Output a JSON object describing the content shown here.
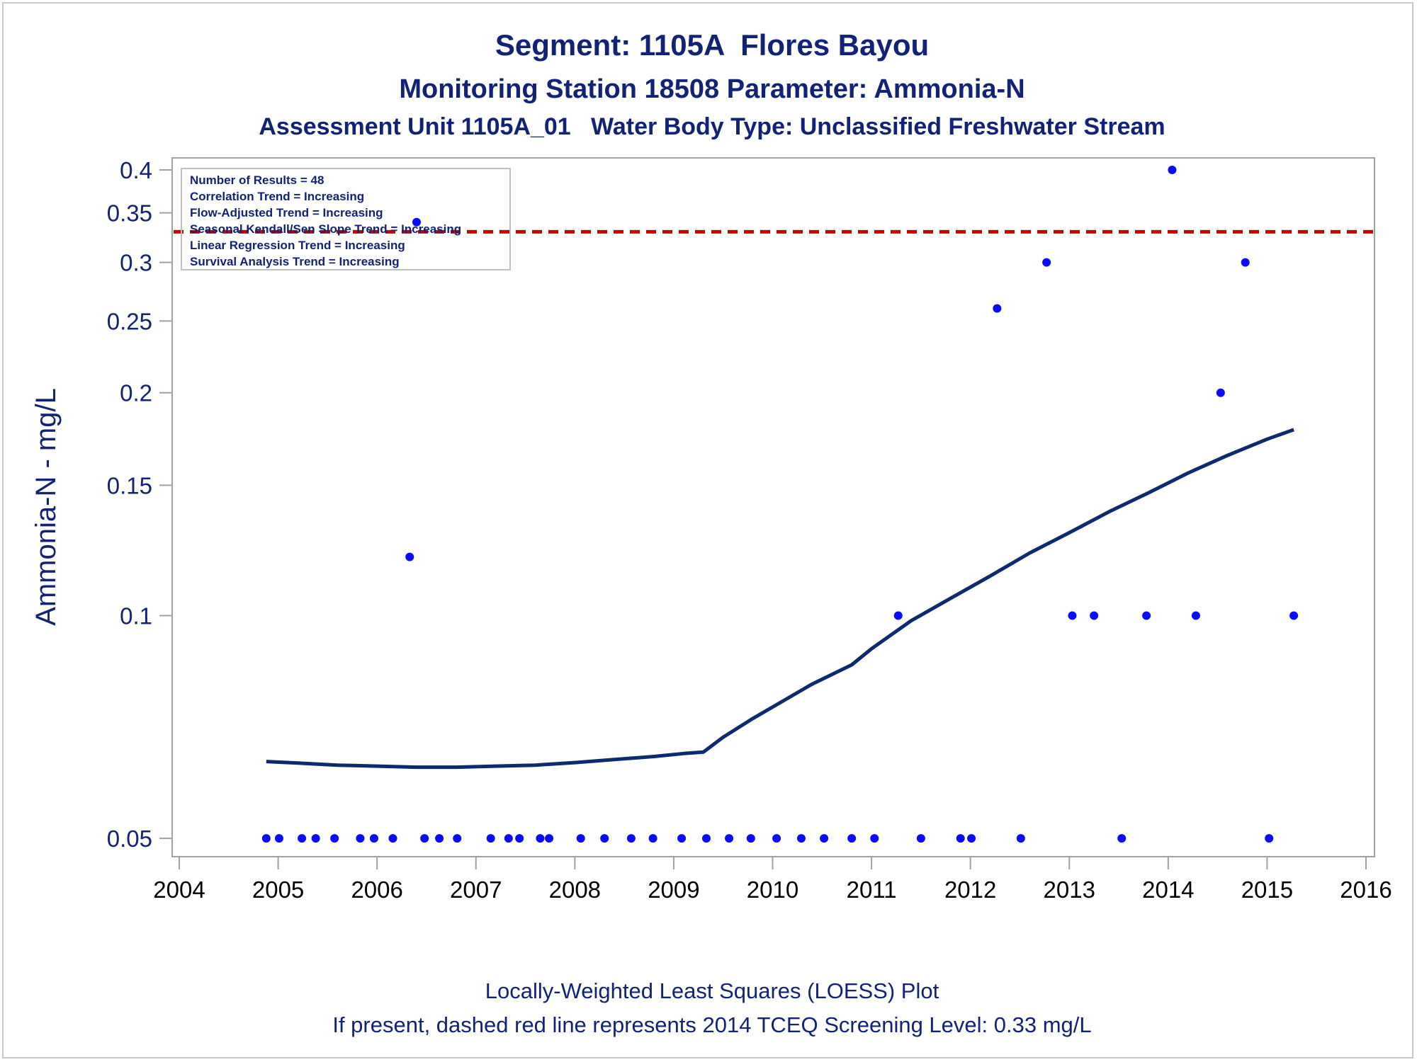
{
  "chart_data": {
    "type": "scatter",
    "title": "Segment: 1105A  Flores Bayou",
    "subtitle": "Monitoring Station 18508 Parameter: Ammonia-N",
    "subtitle2": "Assessment Unit 1105A_01   Water Body Type: Unclassified Freshwater Stream",
    "xlabel": "",
    "ylabel": "Ammonia-N - mg/L",
    "x_scale": "linear",
    "y_scale": "log",
    "xlim": [
      2004,
      2016
    ],
    "ylim": [
      0.0485,
      0.4
    ],
    "x_ticks": [
      2004,
      2005,
      2006,
      2007,
      2008,
      2009,
      2010,
      2011,
      2012,
      2013,
      2014,
      2015,
      2016
    ],
    "x_tick_labels": [
      "2004",
      "2005",
      "2006",
      "2007",
      "2008",
      "2009",
      "2010",
      "2011",
      "2012",
      "2013",
      "2014",
      "2015",
      "2016"
    ],
    "y_ticks": [
      0.05,
      0.1,
      0.15,
      0.2,
      0.25,
      0.3,
      0.35,
      0.4
    ],
    "y_tick_labels": [
      "0.05",
      "0.1",
      "0.15",
      "0.2",
      "0.25",
      "0.3",
      "0.35",
      "0.4"
    ],
    "grid": false,
    "screening_level": {
      "value": 0.33,
      "color": "#cc0000",
      "style": "dashed"
    },
    "points": [
      [
        2004.88,
        0.05
      ],
      [
        2005.01,
        0.05
      ],
      [
        2005.24,
        0.05
      ],
      [
        2005.38,
        0.05
      ],
      [
        2005.57,
        0.05
      ],
      [
        2005.83,
        0.05
      ],
      [
        2005.97,
        0.05
      ],
      [
        2006.16,
        0.05
      ],
      [
        2006.33,
        0.12
      ],
      [
        2006.4,
        0.34
      ],
      [
        2006.48,
        0.05
      ],
      [
        2006.63,
        0.05
      ],
      [
        2006.81,
        0.05
      ],
      [
        2007.15,
        0.05
      ],
      [
        2007.33,
        0.05
      ],
      [
        2007.44,
        0.05
      ],
      [
        2007.65,
        0.05
      ],
      [
        2007.74,
        0.05
      ],
      [
        2008.06,
        0.05
      ],
      [
        2008.3,
        0.05
      ],
      [
        2008.57,
        0.05
      ],
      [
        2008.79,
        0.05
      ],
      [
        2009.08,
        0.05
      ],
      [
        2009.33,
        0.05
      ],
      [
        2009.56,
        0.05
      ],
      [
        2009.78,
        0.05
      ],
      [
        2010.04,
        0.05
      ],
      [
        2010.29,
        0.05
      ],
      [
        2010.52,
        0.05
      ],
      [
        2010.8,
        0.05
      ],
      [
        2011.03,
        0.05
      ],
      [
        2011.27,
        0.1
      ],
      [
        2011.5,
        0.05
      ],
      [
        2011.9,
        0.05
      ],
      [
        2012.01,
        0.05
      ],
      [
        2012.27,
        0.26
      ],
      [
        2012.51,
        0.05
      ],
      [
        2012.77,
        0.3
      ],
      [
        2013.03,
        0.1
      ],
      [
        2013.25,
        0.1
      ],
      [
        2013.53,
        0.05
      ],
      [
        2013.78,
        0.1
      ],
      [
        2014.04,
        0.4
      ],
      [
        2014.28,
        0.1
      ],
      [
        2014.53,
        0.2
      ],
      [
        2014.78,
        0.3
      ],
      [
        2015.02,
        0.05
      ],
      [
        2015.27,
        0.1
      ]
    ],
    "loess": [
      [
        2004.88,
        0.0635
      ],
      [
        2005.2,
        0.0632
      ],
      [
        2005.6,
        0.0628
      ],
      [
        2006.0,
        0.0626
      ],
      [
        2006.4,
        0.0624
      ],
      [
        2006.8,
        0.0624
      ],
      [
        2007.2,
        0.0626
      ],
      [
        2007.6,
        0.0628
      ],
      [
        2008.0,
        0.0633
      ],
      [
        2008.4,
        0.0639
      ],
      [
        2008.8,
        0.0645
      ],
      [
        2009.1,
        0.0651
      ],
      [
        2009.3,
        0.0654
      ],
      [
        2009.5,
        0.0685
      ],
      [
        2009.8,
        0.0726
      ],
      [
        2010.1,
        0.0766
      ],
      [
        2010.4,
        0.0808
      ],
      [
        2010.8,
        0.0858
      ],
      [
        2011.0,
        0.0902
      ],
      [
        2011.4,
        0.0984
      ],
      [
        2011.8,
        0.1055
      ],
      [
        2012.2,
        0.1131
      ],
      [
        2012.6,
        0.1215
      ],
      [
        2013.0,
        0.1294
      ],
      [
        2013.4,
        0.1381
      ],
      [
        2013.8,
        0.1465
      ],
      [
        2014.2,
        0.1558
      ],
      [
        2014.6,
        0.1646
      ],
      [
        2015.0,
        0.1731
      ],
      [
        2015.27,
        0.1783
      ]
    ],
    "point_color": "#0a0aff",
    "line_color": "#0c2a6e",
    "inset": {
      "placement": "top-left",
      "lines": [
        "Number of Results = 48",
        "Correlation Trend = Increasing",
        "Flow-Adjusted Trend = Increasing",
        "Seasonal Kendall/Sen Slope Trend = Increasing",
        "Linear Regression Trend = Increasing",
        "Survival Analysis Trend = Increasing"
      ]
    },
    "footnote1": "Locally-Weighted Least Squares (LOESS) Plot",
    "footnote2": "If present, dashed red line represents 2014 TCEQ Screening Level: 0.33 mg/L"
  }
}
